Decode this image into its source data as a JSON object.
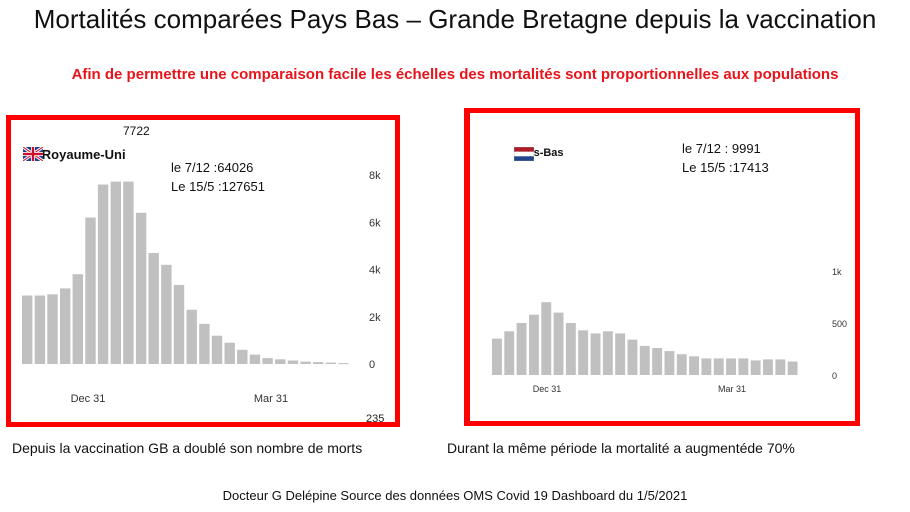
{
  "title": "Mortalités comparées Pays Bas – Grande Bretagne depuis la vaccination",
  "subtitle": "Afin de permettre une comparaison facile les échelles des mortalités sont proportionnelles aux populations",
  "captions": {
    "uk": "Depuis la vaccination GB a doublé son nombre de morts",
    "nl": "Durant la même période la mortalité a augmentéde 70%"
  },
  "footer": "Docteur G Delépine Source des données OMS  Covid 19 Dashboard du 1/5/2021",
  "colors": {
    "frame": "#ff0000",
    "subtitle": "#e8141b",
    "bar": "#c0c0c0"
  },
  "chart_data": [
    {
      "type": "bar",
      "country": "Le Royaume-Uni",
      "flag": "uk-flag",
      "peak_label": "7722",
      "cut_label": "235",
      "notes": [
        "le 7/12 :64026",
        "Le 15/5 :127651"
      ],
      "x_ticks": [
        "Dec 31",
        "Mar 31"
      ],
      "y_ticks": [
        "8k",
        "6k",
        "4k",
        "2k",
        "0"
      ],
      "ylim": [
        0,
        8000
      ],
      "values": [
        2900,
        2900,
        2950,
        3200,
        3800,
        6200,
        7600,
        7722,
        7722,
        6400,
        4700,
        4200,
        3350,
        2300,
        1700,
        1200,
        900,
        600,
        400,
        250,
        200,
        150,
        100,
        80,
        60,
        40
      ]
    },
    {
      "type": "bar",
      "country": "Pays-Bas",
      "flag": "nl-flag",
      "notes": [
        "le 7/12 : 9991",
        "Le 15/5 :17413"
      ],
      "x_ticks": [
        "Dec 31",
        "Mar 31"
      ],
      "y_ticks": [
        "1k",
        "500",
        "0"
      ],
      "ylim": [
        0,
        1000
      ],
      "values": [
        350,
        420,
        500,
        580,
        700,
        600,
        500,
        430,
        400,
        420,
        400,
        340,
        280,
        260,
        230,
        200,
        180,
        160,
        160,
        160,
        160,
        140,
        150,
        150,
        130
      ]
    }
  ]
}
